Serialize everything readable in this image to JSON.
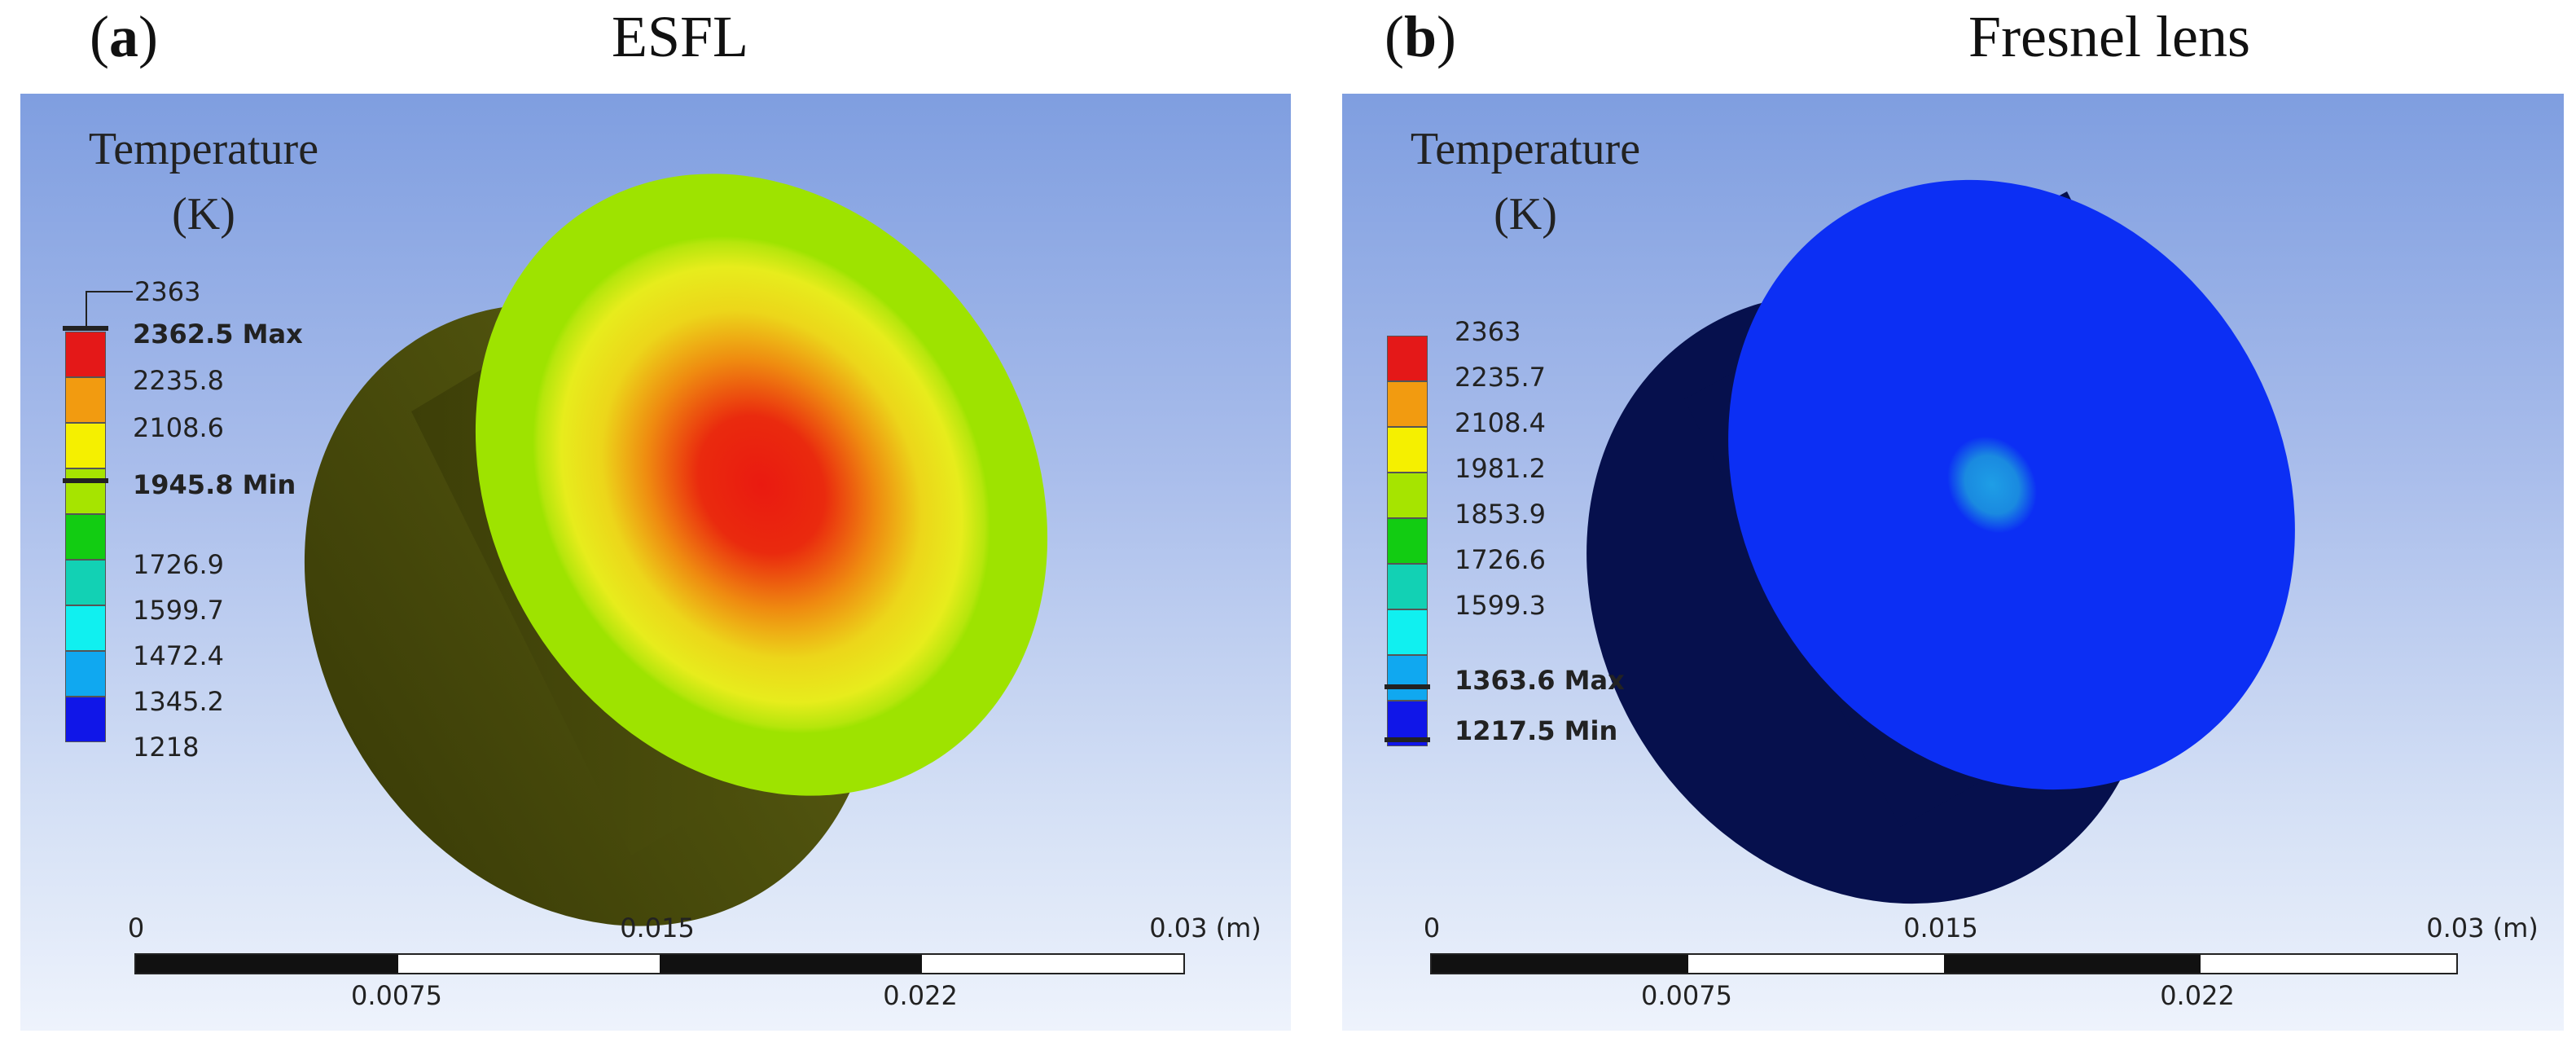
{
  "panels": [
    {
      "letter": "a",
      "title": "ESFL",
      "legend_title": [
        "Temperature",
        "(K)"
      ],
      "legend_top_value": "2363",
      "legend_labels": [
        "2362.5 Max",
        "2235.8",
        "2108.6",
        "1945.8 Min",
        "1726.9",
        "1599.7",
        "1472.4",
        "1345.2",
        "1218"
      ],
      "legend_colors": [
        "#e41818",
        "#f29b10",
        "#f5f000",
        "#a6e400",
        "#12cc12",
        "#12d1b4",
        "#10f0f0",
        "#10a8f0",
        "#1016e8"
      ],
      "scale_labels_top": [
        "0",
        "0.015",
        "0.03 (m)"
      ],
      "scale_labels_bottom": [
        "0.0075",
        "0.022"
      ]
    },
    {
      "letter": "b",
      "title": "Fresnel lens",
      "legend_title": [
        "Temperature",
        "(K)"
      ],
      "legend_labels": [
        "2363",
        "2235.7",
        "2108.4",
        "1981.2",
        "1853.9",
        "1726.6",
        "1599.3",
        "1363.6 Max",
        "1217.5 Min"
      ],
      "legend_colors": [
        "#e41818",
        "#f29b10",
        "#f5f000",
        "#a6e400",
        "#12cc12",
        "#12d1b4",
        "#10f0f0",
        "#10a8f0",
        "#1016e8"
      ],
      "scale_labels_top": [
        "0",
        "0.015",
        "0.03 (m)"
      ],
      "scale_labels_bottom": [
        "0.0075",
        "0.022"
      ]
    }
  ],
  "colors": {
    "esfl_side": "#4b4d0c",
    "esfl_rim": "#9ee300",
    "esfl_hot": "#ea1a10",
    "fresnel_side": "#06104d",
    "fresnel_face": "#0c2ff4",
    "fresnel_spot": "#1a8ae0"
  }
}
